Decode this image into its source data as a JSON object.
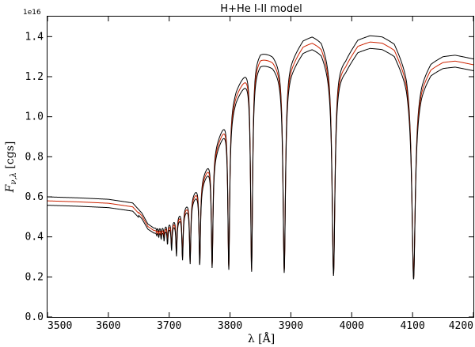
{
  "chart_data": {
    "type": "line",
    "title": "H+He I-II model",
    "xlabel": "λ [Å]",
    "ylabel_main": "F",
    "ylabel_sub": "ν,λ",
    "ylabel_unit": " [cgs]",
    "offset_text": "1e16",
    "xlim": [
      3500,
      4200
    ],
    "ylim": [
      0.0,
      1.5
    ],
    "x_ticks": [
      3500,
      3600,
      3700,
      3800,
      3900,
      4000,
      4100,
      4200
    ],
    "x_tick_labels": [
      "3500",
      "3600",
      "3700",
      "3800",
      "3900",
      "4000",
      "4100",
      "4200"
    ],
    "y_ticks": [
      0.0,
      0.2,
      0.4,
      0.6,
      0.8,
      1.0,
      1.2,
      1.4
    ],
    "y_tick_labels": [
      "0.0",
      "0.2",
      "0.4",
      "0.6",
      "0.8",
      "1.0",
      "1.2",
      "1.4"
    ],
    "grid": false,
    "line_colors": [
      "#000000",
      "#cc2200",
      "#000000"
    ],
    "envelope": {
      "x": [
        3500,
        3550,
        3600,
        3640,
        3655,
        3665,
        3675,
        3690,
        3710,
        3730,
        3750,
        3770,
        3790,
        3810,
        3830,
        3850,
        3870,
        3890,
        3905,
        3920,
        3935,
        3950,
        3970,
        3990,
        4010,
        4030,
        4050,
        4070,
        4090,
        4102,
        4115,
        4130,
        4150,
        4170,
        4200
      ],
      "y": [
        0.6,
        0.595,
        0.588,
        0.57,
        0.52,
        0.465,
        0.445,
        0.455,
        0.5,
        0.58,
        0.68,
        0.82,
        0.98,
        1.15,
        1.27,
        1.335,
        1.32,
        1.26,
        1.32,
        1.39,
        1.41,
        1.39,
        1.26,
        1.3,
        1.39,
        1.41,
        1.405,
        1.375,
        1.25,
        1.1,
        1.2,
        1.275,
        1.305,
        1.31,
        1.29
      ]
    },
    "lines": [
      {
        "center": 4101.7,
        "depth": 0.2,
        "halfwidth": 3.2
      },
      {
        "center": 3970.1,
        "depth": 0.22,
        "halfwidth": 2.8
      },
      {
        "center": 3889.1,
        "depth": 0.235,
        "halfwidth": 2.4
      },
      {
        "center": 3835.4,
        "depth": 0.24,
        "halfwidth": 2.0
      },
      {
        "center": 3797.9,
        "depth": 0.25,
        "halfwidth": 1.8
      },
      {
        "center": 3770.6,
        "depth": 0.26,
        "halfwidth": 1.6
      },
      {
        "center": 3750.2,
        "depth": 0.27,
        "halfwidth": 1.4
      },
      {
        "center": 3734.4,
        "depth": 0.28,
        "halfwidth": 1.3
      },
      {
        "center": 3721.9,
        "depth": 0.3,
        "halfwidth": 1.2
      },
      {
        "center": 3711.9,
        "depth": 0.32,
        "halfwidth": 1.1
      },
      {
        "center": 3703.9,
        "depth": 0.35,
        "halfwidth": 1.0
      },
      {
        "center": 3697.2,
        "depth": 0.38,
        "halfwidth": 0.9
      },
      {
        "center": 3691.6,
        "depth": 0.4,
        "halfwidth": 0.85
      },
      {
        "center": 3686.8,
        "depth": 0.41,
        "halfwidth": 0.8
      },
      {
        "center": 3682.8,
        "depth": 0.42,
        "halfwidth": 0.75
      },
      {
        "center": 3679.4,
        "depth": 0.43,
        "halfwidth": 0.7
      }
    ],
    "series_scale": [
      1.0,
      0.98,
      0.96
    ],
    "continuum_offset": [
      0.0,
      -0.008,
      -0.018
    ]
  }
}
